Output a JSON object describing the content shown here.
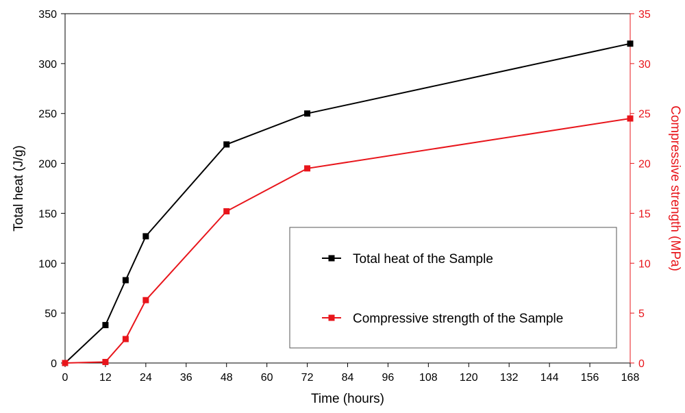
{
  "chart_data": {
    "type": "line",
    "title": "",
    "xlabel": "Time (hours)",
    "ylabel": "Total heat (J/g)",
    "y2label": "Compressive strength (MPa)",
    "xlim": [
      0,
      168
    ],
    "ylim": [
      0,
      350
    ],
    "y2lim": [
      0,
      35
    ],
    "xticks": [
      "0",
      "12",
      "24",
      "36",
      "48",
      "60",
      "72",
      "84",
      "96",
      "108",
      "120",
      "132",
      "144",
      "156",
      "168"
    ],
    "yticks": [
      "0",
      "50",
      "100",
      "150",
      "200",
      "250",
      "300",
      "350"
    ],
    "y2ticks": [
      "0",
      "5",
      "10",
      "15",
      "20",
      "25",
      "30",
      "35"
    ],
    "grid": false,
    "legend_position": "lower-right",
    "series": [
      {
        "name": "Total heat of the Sample",
        "axis": "left",
        "color": "#000000",
        "marker": "square",
        "x": [
          0,
          12,
          18,
          24,
          48,
          72,
          168
        ],
        "y": [
          0,
          38,
          83,
          127,
          219,
          250,
          320
        ]
      },
      {
        "name": "Compressive strength of the Sample",
        "axis": "right",
        "color": "#e8151b",
        "marker": "square",
        "x": [
          0,
          12,
          18,
          24,
          48,
          72,
          168
        ],
        "y": [
          0,
          0.1,
          2.4,
          6.3,
          15.2,
          19.5,
          24.5
        ]
      }
    ]
  }
}
